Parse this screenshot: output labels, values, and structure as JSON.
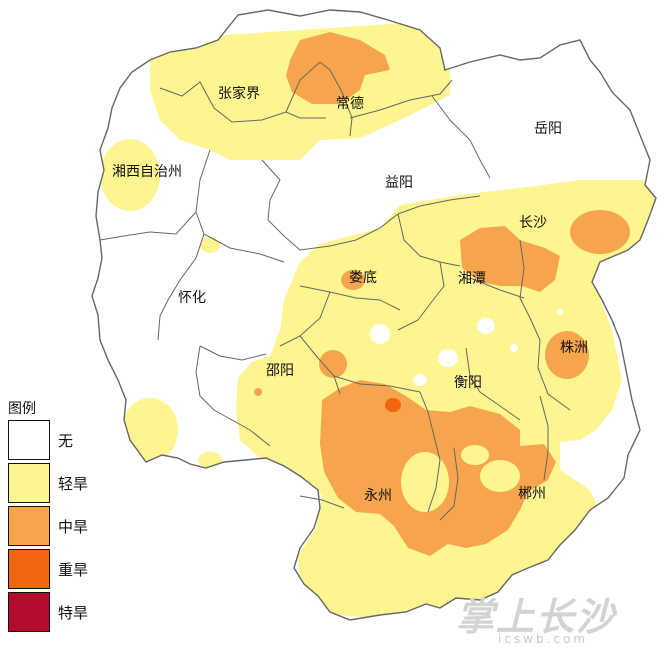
{
  "map": {
    "cities": [
      {
        "id": "zhangjiajie",
        "name": "张家界"
      },
      {
        "id": "changde",
        "name": "常德"
      },
      {
        "id": "yueyang",
        "name": "岳阳"
      },
      {
        "id": "xiangxi",
        "name": "湘西自治州"
      },
      {
        "id": "yiyang",
        "name": "益阳"
      },
      {
        "id": "changsha",
        "name": "长沙"
      },
      {
        "id": "loudi",
        "name": "娄底"
      },
      {
        "id": "xiangtan",
        "name": "湘潭"
      },
      {
        "id": "huaihua",
        "name": "怀化"
      },
      {
        "id": "zhuzhou",
        "name": "株洲"
      },
      {
        "id": "shaoyang",
        "name": "邵阳"
      },
      {
        "id": "hengyang",
        "name": "衡阳"
      },
      {
        "id": "yongzhou",
        "name": "永州"
      },
      {
        "id": "chenzhou",
        "name": "郴州"
      }
    ],
    "colors": {
      "none": "#ffffff",
      "light": "#fdf58f",
      "moderate": "#f7a54d",
      "severe": "#ef6511",
      "extreme": "#b30c2f",
      "border": "#666666"
    }
  },
  "legend": {
    "title": "图例",
    "items": [
      {
        "label": "无",
        "color": "#ffffff"
      },
      {
        "label": "轻旱",
        "color": "#fdf58f"
      },
      {
        "label": "中旱",
        "color": "#f7a54d"
      },
      {
        "label": "重旱",
        "color": "#ef6511"
      },
      {
        "label": "特旱",
        "color": "#b30c2f"
      }
    ]
  },
  "watermark": {
    "text": "掌上长沙",
    "url": "icswb.com"
  }
}
